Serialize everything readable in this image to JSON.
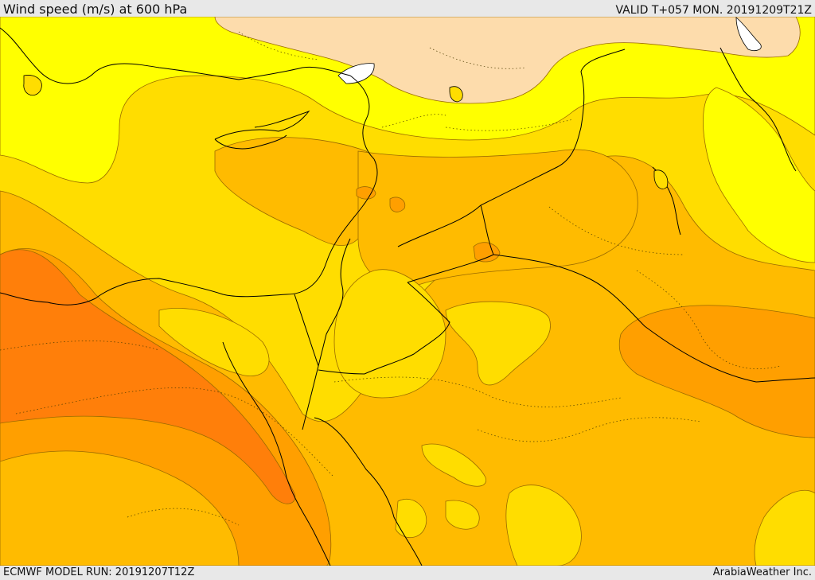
{
  "header": {
    "title": "Wind speed (m/s) at 600 hPa",
    "valid_time": "VALID T+057 MON. 20191209T21Z"
  },
  "footer": {
    "model_run": "ECMWF MODEL RUN: 20191207T12Z",
    "provider": "ArabiaWeather Inc."
  },
  "colors": {
    "light_yellow": "#ffff00",
    "yellow": "#ffdd00",
    "orange_light": "#ffbb00",
    "orange": "#ff9f00",
    "orange_dark": "#ff7f0a",
    "peach": "#fddcac",
    "land_outline": "#000000"
  }
}
